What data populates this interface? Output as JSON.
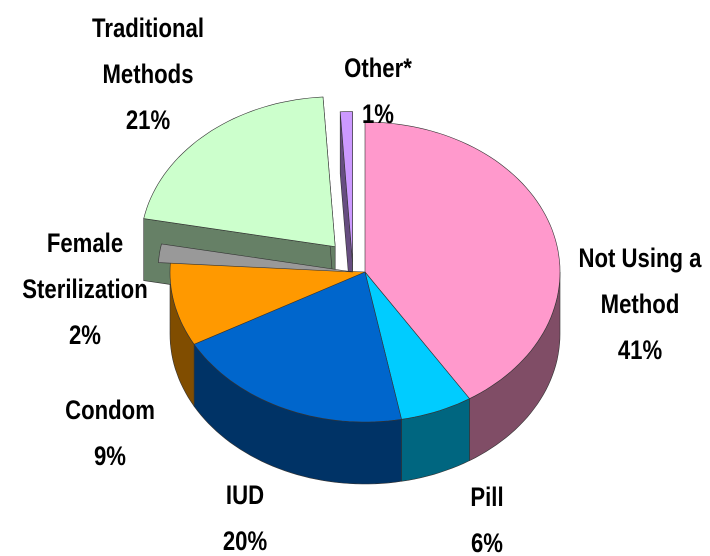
{
  "chart_data": {
    "type": "pie3d",
    "categories": [
      "Not Using a Method",
      "Pill",
      "IUD",
      "Condom",
      "Female Sterilization",
      "Traditional Methods",
      "Other*"
    ],
    "values": [
      41,
      6,
      20,
      9,
      2,
      21,
      1
    ],
    "value_labels": [
      "41%",
      "6%",
      "20%",
      "9%",
      "2%",
      "21%",
      "1%"
    ],
    "colors": [
      "#ff99cc",
      "#00ccff",
      "#0066cc",
      "#ff9900",
      "#999999",
      "#ccffcc",
      "#cc99ff"
    ],
    "exploded": [
      false,
      false,
      false,
      false,
      false,
      true,
      true
    ]
  }
}
